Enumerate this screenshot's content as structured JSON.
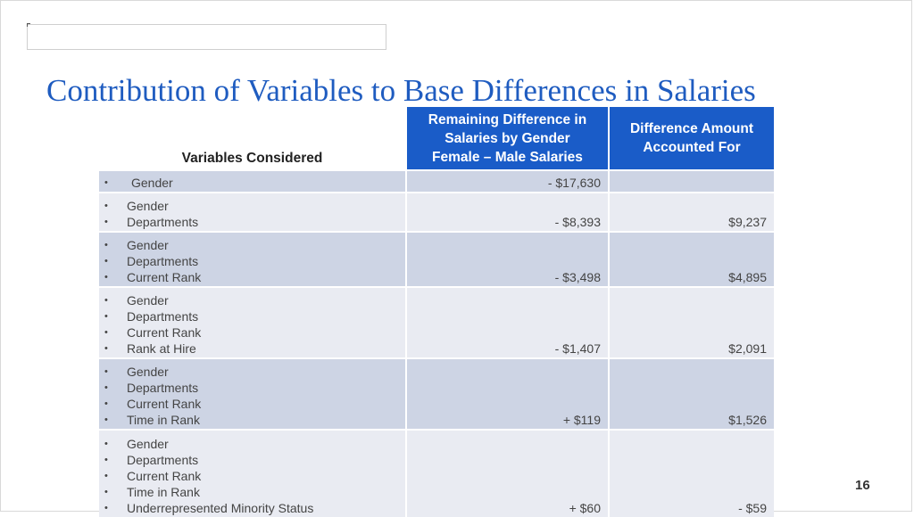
{
  "title": "Contribution of Variables to Base Differences in Salaries",
  "table": {
    "headers": {
      "variables": "Variables Considered",
      "remaining": {
        "line1": "Remaining Difference in",
        "line2": "Salaries by Gender",
        "line3": "Female – Male Salaries"
      },
      "accounted": {
        "line1": "Difference Amount",
        "line2": "Accounted For"
      }
    },
    "rows": [
      {
        "variables": [
          "Gender"
        ],
        "remaining": "- $17,630",
        "accounted": ""
      },
      {
        "variables": [
          "Gender",
          "Departments"
        ],
        "remaining": "- $8,393",
        "accounted": "$9,237"
      },
      {
        "variables": [
          "Gender",
          "Departments",
          "Current Rank"
        ],
        "remaining": "- $3,498",
        "accounted": "$4,895"
      },
      {
        "variables": [
          "Gender",
          "Departments",
          "Current Rank",
          "Rank at Hire"
        ],
        "remaining": "- $1,407",
        "accounted": "$2,091"
      },
      {
        "variables": [
          "Gender",
          "Departments",
          "Current Rank",
          "Time in Rank"
        ],
        "remaining": "+ $119",
        "accounted": "$1,526"
      },
      {
        "variables": [
          "Gender",
          "Departments",
          "Current Rank",
          "Time in Rank",
          "Underrepresented Minority Status"
        ],
        "remaining": "+ $60",
        "accounted": "- $59"
      }
    ]
  },
  "page_number": "16",
  "colors": {
    "title": "#1f5cc0",
    "header_bg": "#1a5cc8",
    "row_dark": "#cdd4e4",
    "row_light": "#e9ebf2"
  }
}
